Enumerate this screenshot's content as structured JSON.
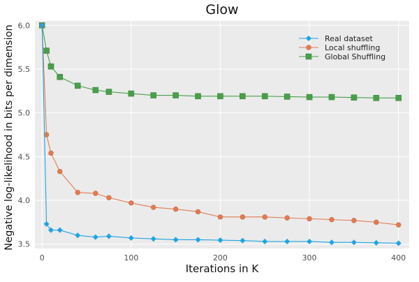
{
  "chart_data": {
    "type": "line",
    "title": "Glow",
    "xlabel": "Iterations in K",
    "ylabel": "Negative log-likelihood in bits per dimension",
    "xlim": [
      -8,
      412
    ],
    "ylim": [
      3.45,
      6.05
    ],
    "xticks": [
      0,
      100,
      200,
      300,
      400
    ],
    "yticks": [
      3.5,
      4.0,
      4.5,
      5.0,
      5.5,
      6.0
    ],
    "xtick_labels": [
      "0",
      "100",
      "200",
      "300",
      "400"
    ],
    "ytick_labels": [
      "3.5",
      "4.0",
      "4.5",
      "5.0",
      "5.5",
      "6.0"
    ],
    "grid": true,
    "legend_position": "top-right",
    "series": [
      {
        "name": "Real dataset",
        "color": "#1fa5e0",
        "marker": "diamond",
        "x": [
          0,
          5,
          10,
          20,
          40,
          60,
          75,
          100,
          125,
          150,
          175,
          200,
          225,
          250,
          275,
          300,
          325,
          350,
          375,
          400
        ],
        "y": [
          6.0,
          3.73,
          3.66,
          3.66,
          3.6,
          3.58,
          3.59,
          3.57,
          3.56,
          3.55,
          3.55,
          3.545,
          3.54,
          3.53,
          3.53,
          3.53,
          3.52,
          3.52,
          3.515,
          3.51
        ]
      },
      {
        "name": "Local shuffling",
        "color": "#e07b54",
        "marker": "circle",
        "x": [
          0,
          5,
          10,
          20,
          40,
          60,
          75,
          100,
          125,
          150,
          175,
          200,
          225,
          250,
          275,
          300,
          325,
          350,
          375,
          400
        ],
        "y": [
          6.0,
          4.75,
          4.54,
          4.33,
          4.09,
          4.08,
          4.03,
          3.97,
          3.92,
          3.9,
          3.87,
          3.81,
          3.81,
          3.81,
          3.8,
          3.79,
          3.78,
          3.77,
          3.75,
          3.72
        ]
      },
      {
        "name": "Global Shuffling",
        "color": "#4a9e4c",
        "marker": "square",
        "x": [
          0,
          5,
          10,
          20,
          40,
          60,
          75,
          100,
          125,
          150,
          175,
          200,
          225,
          250,
          275,
          300,
          325,
          350,
          375,
          400
        ],
        "y": [
          6.0,
          5.71,
          5.53,
          5.41,
          5.31,
          5.26,
          5.24,
          5.22,
          5.2,
          5.2,
          5.19,
          5.19,
          5.19,
          5.19,
          5.185,
          5.18,
          5.18,
          5.175,
          5.17,
          5.17
        ]
      }
    ]
  }
}
